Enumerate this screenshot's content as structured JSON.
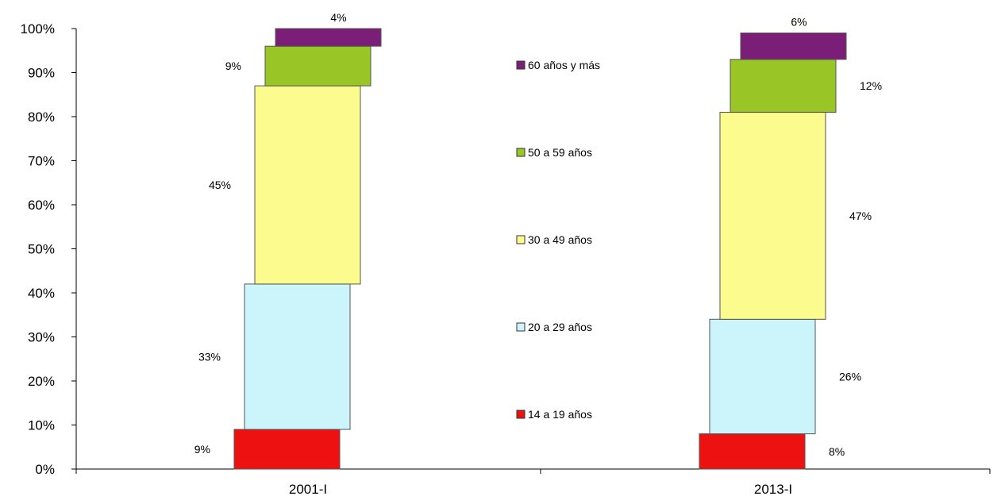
{
  "chart_data": {
    "type": "bar",
    "stacked": true,
    "categories": [
      "2001-I",
      "2013-I"
    ],
    "series": [
      {
        "name": "14 a 19 años",
        "color": "#ee1111",
        "values": [
          9,
          8
        ],
        "labels": [
          "9%",
          "8%"
        ]
      },
      {
        "name": "20 a 29 años",
        "color": "#ccf5fb",
        "values": [
          33,
          26
        ],
        "labels": [
          "33%",
          "26%"
        ]
      },
      {
        "name": "30 a 49 años",
        "color": "#fbfb8e",
        "values": [
          45,
          47
        ],
        "labels": [
          "45%",
          "47%"
        ]
      },
      {
        "name": "50 a 59 años",
        "color": "#99c527",
        "values": [
          9,
          12
        ],
        "labels": [
          "9%",
          "12%"
        ]
      },
      {
        "name": "60 años y más",
        "color": "#7a1e78",
        "values": [
          4,
          6
        ],
        "labels": [
          "4%",
          "6%"
        ]
      }
    ],
    "yticks": [
      "0%",
      "10%",
      "20%",
      "30%",
      "40%",
      "50%",
      "60%",
      "70%",
      "80%",
      "90%",
      "100%"
    ],
    "ylim": [
      0,
      100
    ],
    "legend_placement": "center",
    "grid": false
  }
}
